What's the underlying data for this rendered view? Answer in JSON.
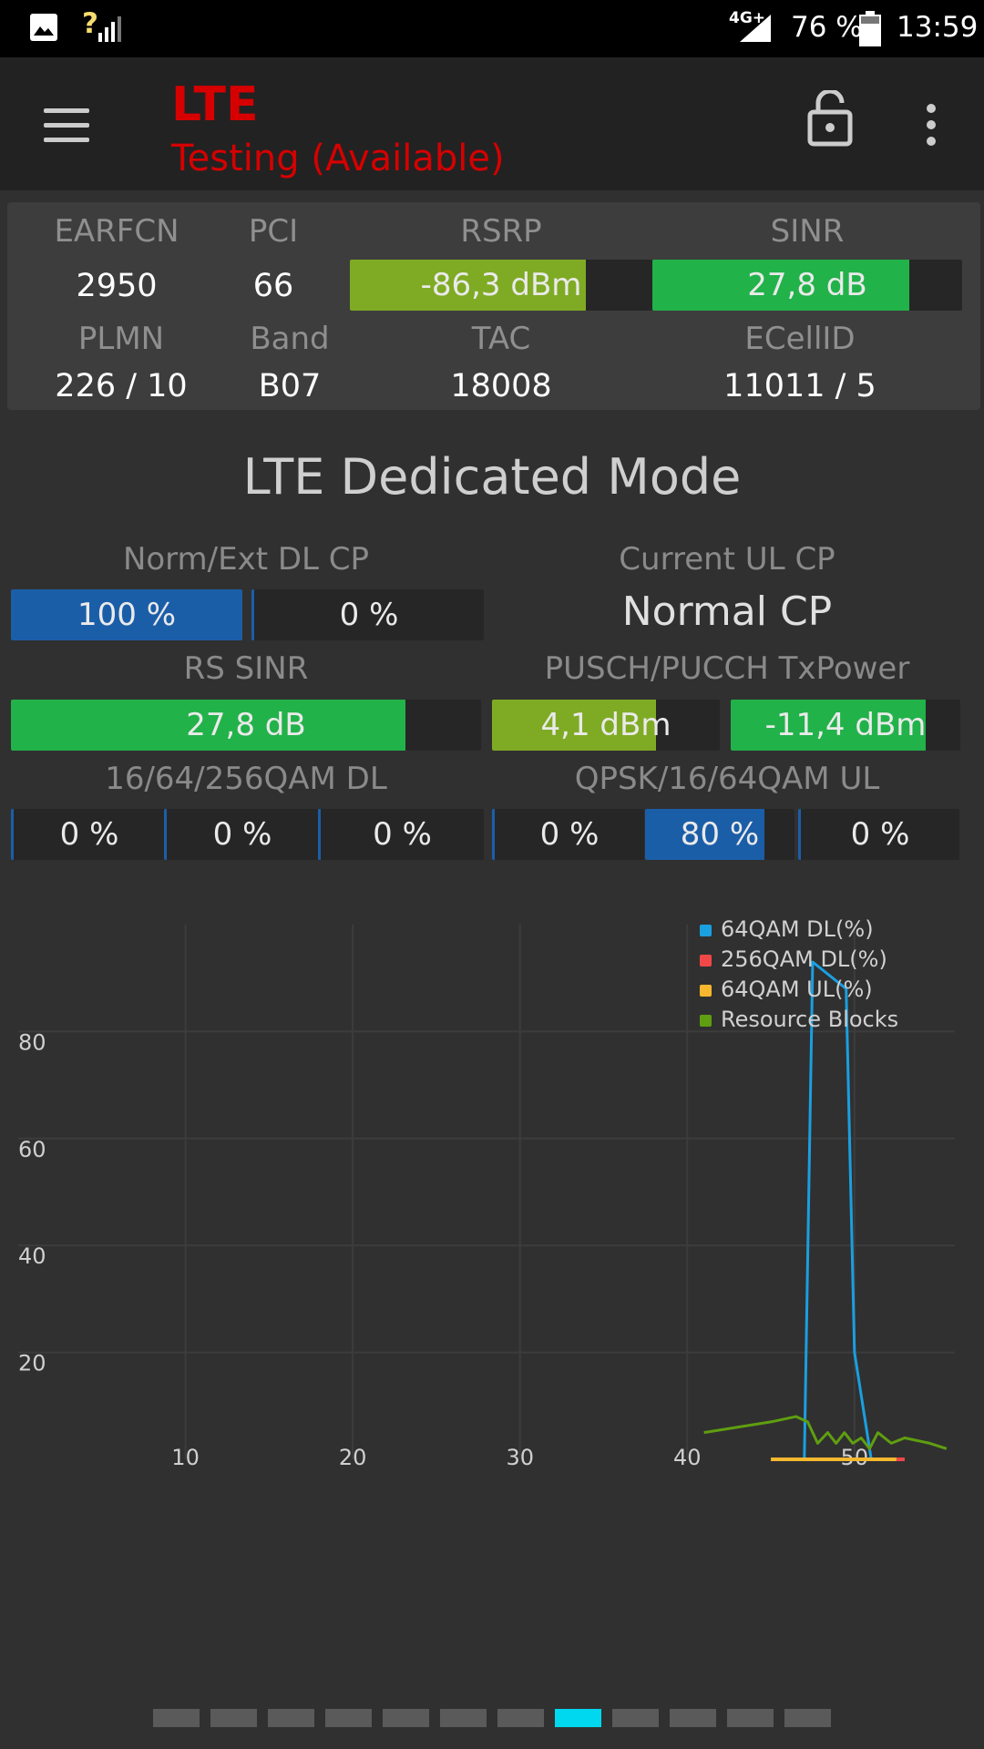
{
  "status_bar": {
    "battery": "76 %",
    "time": "13:59",
    "network": "4G+",
    "signal_unknown": "?"
  },
  "app_bar": {
    "title": "LTE",
    "subtitle": "Testing (Available)",
    "menu_icon": "hamburger-icon",
    "lock_icon": "lock-open-icon",
    "overflow_icon": "more-vert-icon"
  },
  "info": {
    "earfcn_label": "EARFCN",
    "earfcn": "2950",
    "pci_label": "PCI",
    "pci": "66",
    "rsrp_label": "RSRP",
    "rsrp": "-86,3 dBm",
    "rsrp_fill": 0.78,
    "sinr_label": "SINR",
    "sinr": "27,8 dB",
    "sinr_fill": 0.83,
    "plmn_label": "PLMN",
    "plmn": "226 / 10",
    "band_label": "Band",
    "band": "B07",
    "tac_label": "TAC",
    "tac": "18008",
    "ecellid_label": "ECellID",
    "ecellid": "11011 / 5"
  },
  "section": {
    "title": "LTE Dedicated Mode",
    "dl_cp_label": "Norm/Ext DL CP",
    "dl_cp_norm": "100 %",
    "dl_cp_norm_fill": 1.0,
    "dl_cp_ext": "0 %",
    "ul_cp_label": "Current UL CP",
    "ul_cp_value": "Normal CP",
    "rs_sinr_label": "RS SINR",
    "rs_sinr": "27,8 dB",
    "rs_sinr_fill": 0.84,
    "txpower_label": "PUSCH/PUCCH TxPower",
    "pusch": "4,1 dBm",
    "pusch_fill": 0.72,
    "pucch": "-11,4 dBm",
    "pucch_fill": 0.85,
    "qam_dl_label": "16/64/256QAM DL",
    "qam_dl": [
      "0 %",
      "0 %",
      "0 %"
    ],
    "qam_ul_label": "QPSK/16/64QAM UL",
    "qam_ul": [
      "0 %",
      "80 %",
      "0 %"
    ],
    "qam_ul_fill": [
      0,
      0.8,
      0
    ]
  },
  "chart_data": {
    "type": "line",
    "xlim": [
      0,
      56
    ],
    "ylim": [
      0,
      100
    ],
    "x_ticks": [
      "10",
      "20",
      "30",
      "40",
      "50"
    ],
    "y_ticks": [
      "20",
      "40",
      "60",
      "80"
    ],
    "legend_position": "top-right",
    "grid": true,
    "series": [
      {
        "name": "64QAM DL(%)",
        "color": "#1a9fe0",
        "x": [
          47,
          47.5,
          49.5,
          50,
          51,
          51.5
        ],
        "y": [
          0,
          93,
          88,
          20,
          0,
          0
        ]
      },
      {
        "name": "256QAM DL(%)",
        "color": "#f04848",
        "x": [
          45,
          53
        ],
        "y": [
          0,
          0
        ]
      },
      {
        "name": "64QAM UL(%)",
        "color": "#f5b82e",
        "x": [
          45,
          52.5
        ],
        "y": [
          0,
          0
        ]
      },
      {
        "name": "Resource Blocks",
        "color": "#5f9e10",
        "x": [
          41,
          43,
          45,
          46.5,
          47.2,
          47.8,
          48.4,
          48.9,
          49.4,
          49.9,
          50.4,
          50.9,
          51.4,
          52.2,
          53,
          54.5,
          55.5
        ],
        "y": [
          5,
          6,
          7,
          8,
          7,
          3,
          5,
          3,
          5,
          3,
          4,
          2,
          5,
          3,
          4,
          3,
          2
        ]
      }
    ]
  },
  "pager": {
    "count": 12,
    "active": 7,
    "active_color": "#00d8f0"
  }
}
